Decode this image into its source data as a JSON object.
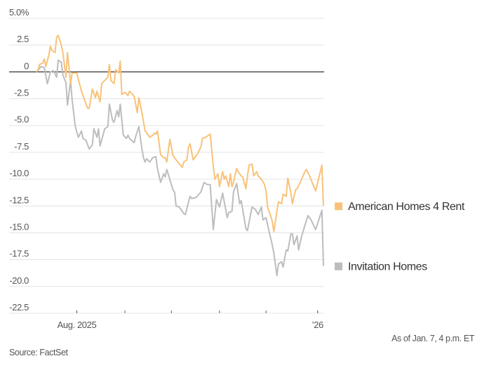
{
  "chart_data": {
    "type": "line",
    "title": "",
    "xlabel": "",
    "ylabel": "",
    "y_unit": "%",
    "ylim": [
      -22.5,
      5.0
    ],
    "xlim": [
      "2025-07-06",
      "2026-01-07"
    ],
    "grid": true,
    "y_ticks": [
      5.0,
      2.5,
      0,
      -2.5,
      -5.0,
      -7.5,
      -10.0,
      -12.5,
      -15.0,
      -17.5,
      -20.0,
      -22.5
    ],
    "y_tick_labels": [
      "5.0%",
      "2.5",
      "0",
      "-2.5",
      "-5.0",
      "-7.5",
      "-10.0",
      "-12.5",
      "-15.0",
      "-17.5",
      "-20.0",
      "-22.5"
    ],
    "x_ticks": [
      "2025-08-01",
      "2025-09-01",
      "2025-10-01",
      "2025-11-01",
      "2025-12-01",
      "2026-01-01"
    ],
    "x_tick_labels": [
      "Aug. 2025",
      "",
      "",
      "",
      "",
      "’26"
    ],
    "legend_placement": "right, at line ends",
    "series": [
      {
        "name": "American Homes 4 Rent",
        "color": "#f9c27a",
        "points": [
          [
            "2025-07-06",
            0.0
          ],
          [
            "2025-07-07",
            0.2
          ],
          [
            "2025-07-08",
            0.7
          ],
          [
            "2025-07-10",
            0.8
          ],
          [
            "2025-07-11",
            1.2
          ],
          [
            "2025-07-12",
            0.5
          ],
          [
            "2025-07-14",
            1.6
          ],
          [
            "2025-07-15",
            2.4
          ],
          [
            "2025-07-16",
            2.0
          ],
          [
            "2025-07-18",
            1.8
          ],
          [
            "2025-07-19",
            3.2
          ],
          [
            "2025-07-20",
            3.4
          ],
          [
            "2025-07-22",
            2.5
          ],
          [
            "2025-07-23",
            1.8
          ],
          [
            "2025-07-25",
            -0.5
          ],
          [
            "2025-07-26",
            1.8
          ],
          [
            "2025-07-28",
            -1.1
          ],
          [
            "2025-07-29",
            -0.1
          ],
          [
            "2025-08-01",
            -0.1
          ],
          [
            "2025-08-02",
            -0.7
          ],
          [
            "2025-08-04",
            -1.8
          ],
          [
            "2025-08-06",
            -2.6
          ],
          [
            "2025-08-08",
            -3.4
          ],
          [
            "2025-08-09",
            -3.4
          ],
          [
            "2025-08-11",
            -1.6
          ],
          [
            "2025-08-13",
            -2.4
          ],
          [
            "2025-08-14",
            -1.8
          ],
          [
            "2025-08-16",
            -2.8
          ],
          [
            "2025-08-17",
            -1.1
          ],
          [
            "2025-08-19",
            -0.8
          ],
          [
            "2025-08-21",
            -0.5
          ],
          [
            "2025-08-22",
            0.7
          ],
          [
            "2025-08-23",
            -0.8
          ],
          [
            "2025-08-25",
            -1.1
          ],
          [
            "2025-08-26",
            0.2
          ],
          [
            "2025-08-28",
            -0.1
          ],
          [
            "2025-08-29",
            1.0
          ],
          [
            "2025-08-30",
            -2.1
          ],
          [
            "2025-09-01",
            -1.9
          ],
          [
            "2025-09-03",
            -2.2
          ],
          [
            "2025-09-04",
            -1.8
          ],
          [
            "2025-09-06",
            -2.1
          ],
          [
            "2025-09-07",
            -2.3
          ],
          [
            "2025-09-09",
            -3.8
          ],
          [
            "2025-09-10",
            -2.4
          ],
          [
            "2025-09-12",
            -3.8
          ],
          [
            "2025-09-14",
            -5.5
          ],
          [
            "2025-09-15",
            -5.7
          ],
          [
            "2025-09-17",
            -6.1
          ],
          [
            "2025-09-19",
            -5.9
          ],
          [
            "2025-09-20",
            -5.7
          ],
          [
            "2025-09-21",
            -5.8
          ],
          [
            "2025-09-22",
            -5.5
          ],
          [
            "2025-09-24",
            -7.7
          ],
          [
            "2025-09-26",
            -8.0
          ],
          [
            "2025-09-27",
            -8.0
          ],
          [
            "2025-09-28",
            -8.4
          ],
          [
            "2025-09-30",
            -6.3
          ],
          [
            "2025-10-02",
            -7.8
          ],
          [
            "2025-10-04",
            -8.2
          ],
          [
            "2025-10-05",
            -8.4
          ],
          [
            "2025-10-08",
            -8.9
          ],
          [
            "2025-10-09",
            -8.4
          ],
          [
            "2025-10-11",
            -8.2
          ],
          [
            "2025-10-12",
            -7.0
          ],
          [
            "2025-10-13",
            -6.7
          ],
          [
            "2025-10-15",
            -8.2
          ],
          [
            "2025-10-16",
            -8.0
          ],
          [
            "2025-10-18",
            -7.6
          ],
          [
            "2025-10-20",
            -7.0
          ],
          [
            "2025-10-21",
            -6.2
          ],
          [
            "2025-10-23",
            -6.1
          ],
          [
            "2025-10-25",
            -5.9
          ],
          [
            "2025-10-26",
            -5.8
          ],
          [
            "2025-10-28",
            -8.8
          ],
          [
            "2025-10-29",
            -10.0
          ],
          [
            "2025-10-31",
            -9.5
          ],
          [
            "2025-11-01",
            -10.7
          ],
          [
            "2025-11-03",
            -9.3
          ],
          [
            "2025-11-04",
            -10.0
          ],
          [
            "2025-11-05",
            -9.7
          ],
          [
            "2025-11-07",
            -10.7
          ],
          [
            "2025-11-08",
            -9.5
          ],
          [
            "2025-11-09",
            -10.7
          ],
          [
            "2025-11-10",
            -10.3
          ],
          [
            "2025-11-12",
            -9.0
          ],
          [
            "2025-11-13",
            -9.3
          ],
          [
            "2025-11-15",
            -9.7
          ],
          [
            "2025-11-16",
            -9.8
          ],
          [
            "2025-11-18",
            -10.9
          ],
          [
            "2025-11-19",
            -9.7
          ],
          [
            "2025-11-20",
            -8.7
          ],
          [
            "2025-11-22",
            -8.6
          ],
          [
            "2025-11-23",
            -9.7
          ],
          [
            "2025-11-25",
            -9.3
          ],
          [
            "2025-11-26",
            -9.7
          ],
          [
            "2025-11-28",
            -10.0
          ],
          [
            "2025-11-30",
            -10.5
          ],
          [
            "2025-12-01",
            -11.1
          ],
          [
            "2025-12-02",
            -12.6
          ],
          [
            "2025-12-03",
            -13.0
          ],
          [
            "2025-12-05",
            -13.9
          ],
          [
            "2025-12-06",
            -14.9
          ],
          [
            "2025-12-08",
            -13.0
          ],
          [
            "2025-12-09",
            -12.1
          ],
          [
            "2025-12-11",
            -12.3
          ],
          [
            "2025-12-12",
            -11.4
          ],
          [
            "2025-12-14",
            -11.6
          ],
          [
            "2025-12-15",
            -9.9
          ],
          [
            "2025-12-17",
            -11.3
          ],
          [
            "2025-12-18",
            -12.3
          ],
          [
            "2025-12-20",
            -11.0
          ],
          [
            "2025-12-21",
            -10.9
          ],
          [
            "2025-12-23",
            -10.3
          ],
          [
            "2025-12-24",
            -10.0
          ],
          [
            "2025-12-26",
            -9.3
          ],
          [
            "2025-12-27",
            -9.1
          ],
          [
            "2025-12-29",
            -9.7
          ],
          [
            "2026-01-02",
            -11.1
          ],
          [
            "2026-01-06",
            -8.7
          ],
          [
            "2026-01-07",
            -12.5
          ]
        ]
      },
      {
        "name": "Invitation Homes",
        "color": "#bdbdbd",
        "points": [
          [
            "2025-07-06",
            0.0
          ],
          [
            "2025-07-09",
            0.5
          ],
          [
            "2025-07-11",
            0.4
          ],
          [
            "2025-07-13",
            -1.1
          ],
          [
            "2025-07-15",
            0.0
          ],
          [
            "2025-07-17",
            0.1
          ],
          [
            "2025-07-19",
            -0.5
          ],
          [
            "2025-07-20",
            1.1
          ],
          [
            "2025-07-22",
            0.9
          ],
          [
            "2025-07-23",
            -0.3
          ],
          [
            "2025-07-25",
            -1.0
          ],
          [
            "2025-07-26",
            -3.1
          ],
          [
            "2025-07-28",
            -0.8
          ],
          [
            "2025-07-29",
            -2.6
          ],
          [
            "2025-07-31",
            -5.1
          ],
          [
            "2025-08-02",
            -6.1
          ],
          [
            "2025-08-04",
            -5.5
          ],
          [
            "2025-08-05",
            -6.2
          ],
          [
            "2025-08-07",
            -6.4
          ],
          [
            "2025-08-09",
            -7.2
          ],
          [
            "2025-08-11",
            -6.8
          ],
          [
            "2025-08-12",
            -5.3
          ],
          [
            "2025-08-14",
            -6.1
          ],
          [
            "2025-08-15",
            -5.3
          ],
          [
            "2025-08-16",
            -6.9
          ],
          [
            "2025-08-19",
            -5.3
          ],
          [
            "2025-08-21",
            -5.1
          ],
          [
            "2025-08-22",
            -3.0
          ],
          [
            "2025-08-24",
            -4.5
          ],
          [
            "2025-08-25",
            -4.7
          ],
          [
            "2025-08-27",
            -3.6
          ],
          [
            "2025-08-28",
            -4.2
          ],
          [
            "2025-08-29",
            -3.0
          ],
          [
            "2025-08-31",
            -5.9
          ],
          [
            "2025-09-02",
            -6.2
          ],
          [
            "2025-09-03",
            -5.9
          ],
          [
            "2025-09-04",
            -6.2
          ],
          [
            "2025-09-07",
            -6.6
          ],
          [
            "2025-09-08",
            -6.0
          ],
          [
            "2025-09-10",
            -5.1
          ],
          [
            "2025-09-12",
            -7.2
          ],
          [
            "2025-09-13",
            -8.0
          ],
          [
            "2025-09-14",
            -8.4
          ],
          [
            "2025-09-15",
            -8.1
          ],
          [
            "2025-09-17",
            -8.4
          ],
          [
            "2025-09-19",
            -8.0
          ],
          [
            "2025-09-21",
            -7.9
          ],
          [
            "2025-09-22",
            -9.0
          ],
          [
            "2025-09-24",
            -10.3
          ],
          [
            "2025-09-26",
            -9.5
          ],
          [
            "2025-09-27",
            -9.8
          ],
          [
            "2025-09-28",
            -9.1
          ],
          [
            "2025-10-02",
            -11.0
          ],
          [
            "2025-10-03",
            -11.2
          ],
          [
            "2025-10-04",
            -12.5
          ],
          [
            "2025-10-06",
            -12.6
          ],
          [
            "2025-10-09",
            -13.2
          ],
          [
            "2025-10-10",
            -13.3
          ],
          [
            "2025-10-13",
            -11.6
          ],
          [
            "2025-10-14",
            -11.8
          ],
          [
            "2025-10-17",
            -11.7
          ],
          [
            "2025-10-20",
            -11.2
          ],
          [
            "2025-10-22",
            -10.3
          ],
          [
            "2025-10-24",
            -10.5
          ],
          [
            "2025-10-26",
            -10.5
          ],
          [
            "2025-10-28",
            -14.7
          ],
          [
            "2025-10-30",
            -11.9
          ],
          [
            "2025-11-01",
            -12.6
          ],
          [
            "2025-11-03",
            -11.3
          ],
          [
            "2025-11-06",
            -13.6
          ],
          [
            "2025-11-07",
            -13.1
          ],
          [
            "2025-11-09",
            -13.0
          ],
          [
            "2025-11-10",
            -11.2
          ],
          [
            "2025-11-12",
            -10.4
          ],
          [
            "2025-11-14",
            -12.3
          ],
          [
            "2025-11-15",
            -12.0
          ],
          [
            "2025-11-18",
            -14.6
          ],
          [
            "2025-11-19",
            -14.8
          ],
          [
            "2025-11-21",
            -13.3
          ],
          [
            "2025-11-22",
            -12.6
          ],
          [
            "2025-11-24",
            -12.8
          ],
          [
            "2025-11-26",
            -13.3
          ],
          [
            "2025-11-28",
            -12.6
          ],
          [
            "2025-11-29",
            -13.8
          ],
          [
            "2025-12-01",
            -13.6
          ],
          [
            "2025-12-03",
            -14.9
          ],
          [
            "2025-12-05",
            -16.1
          ],
          [
            "2025-12-06",
            -16.9
          ],
          [
            "2025-12-08",
            -19.0
          ],
          [
            "2025-12-09",
            -17.9
          ],
          [
            "2025-12-11",
            -17.7
          ],
          [
            "2025-12-12",
            -18.2
          ],
          [
            "2025-12-14",
            -16.6
          ],
          [
            "2025-12-15",
            -16.7
          ],
          [
            "2025-12-17",
            -15.1
          ],
          [
            "2025-12-18",
            -15.1
          ],
          [
            "2025-12-19",
            -16.1
          ],
          [
            "2025-12-21",
            -15.3
          ],
          [
            "2025-12-22",
            -16.6
          ],
          [
            "2025-12-24",
            -15.3
          ],
          [
            "2025-12-25",
            -14.8
          ],
          [
            "2025-12-28",
            -13.4
          ],
          [
            "2025-12-30",
            -13.8
          ],
          [
            "2025-12-31",
            -14.1
          ],
          [
            "2026-01-02",
            -14.7
          ],
          [
            "2026-01-06",
            -12.9
          ],
          [
            "2026-01-07",
            -18.1
          ]
        ]
      }
    ]
  },
  "footer": {
    "timestamp": "As of Jan. 7, 4 p.m. ET",
    "source": "Source: FactSet"
  }
}
